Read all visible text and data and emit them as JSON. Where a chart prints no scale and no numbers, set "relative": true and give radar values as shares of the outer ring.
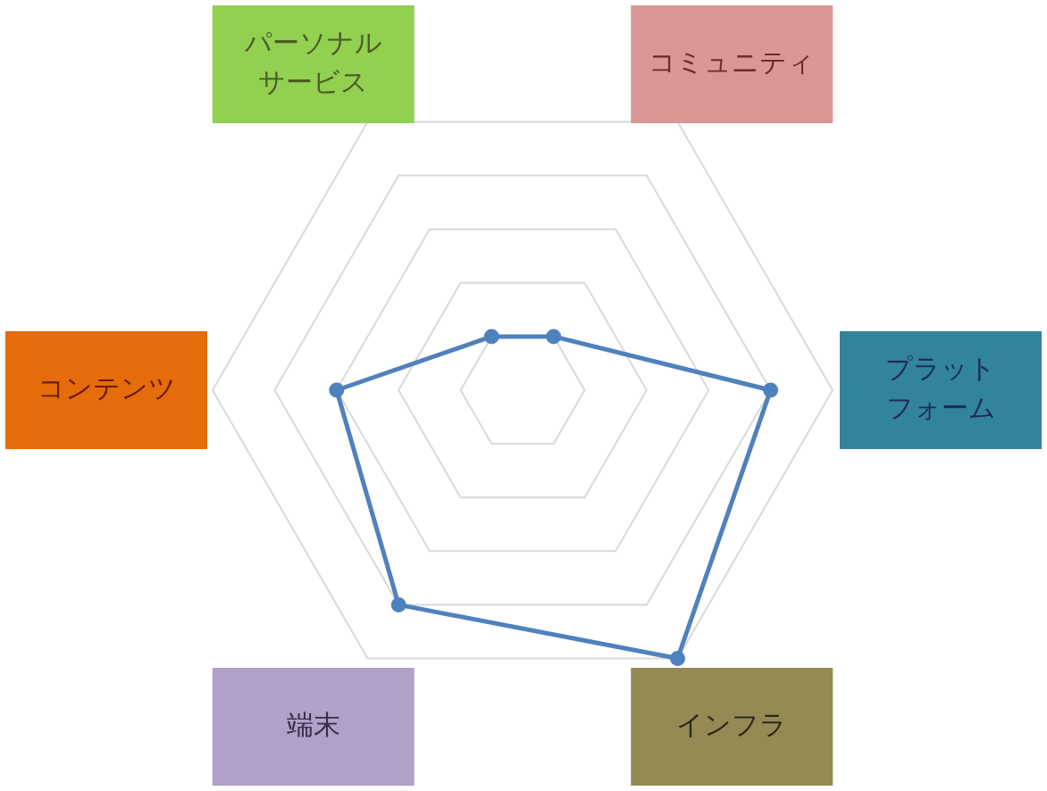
{
  "chart_data": {
    "type": "radar",
    "relative": true,
    "grid": true,
    "marker": "circle",
    "categories": [
      "パーソナルサービス",
      "コミュニティ",
      "プラットフォーム",
      "インフラ",
      "端末",
      "コンテンツ"
    ],
    "series": [
      {
        "color": "#4f81bd",
        "values": [
          0.2,
          0.2,
          0.8,
          1,
          0.8,
          0.6
        ]
      }
    ]
  }
}
